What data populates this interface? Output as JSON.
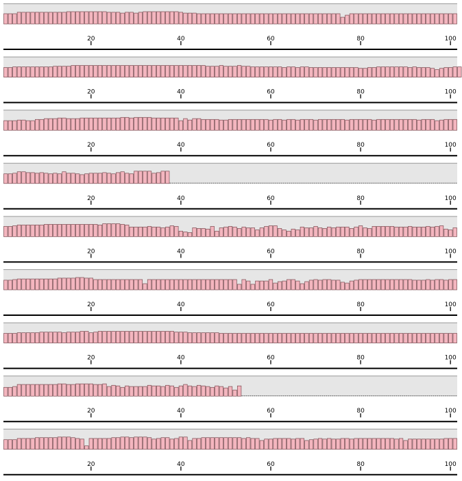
{
  "chart_data": {
    "type": "bar",
    "grid": false,
    "xlim": [
      1,
      101
    ],
    "ylim": [
      0,
      1
    ],
    "x_ticks": [
      "20",
      "40",
      "60",
      "80",
      "100"
    ],
    "colors": {
      "bar_fill": "#f4b6bf",
      "bar_stroke": "#7a4a50",
      "panel_bg": "#e6e6e6",
      "axis": "#000000"
    },
    "tracks": [
      {
        "length": 101,
        "values": [
          0.5,
          0.5,
          0.5,
          0.57,
          0.57,
          0.57,
          0.57,
          0.57,
          0.57,
          0.57,
          0.57,
          0.57,
          0.57,
          0.57,
          0.6,
          0.6,
          0.6,
          0.6,
          0.6,
          0.6,
          0.6,
          0.6,
          0.6,
          0.57,
          0.57,
          0.57,
          0.53,
          0.57,
          0.57,
          0.53,
          0.57,
          0.6,
          0.6,
          0.6,
          0.6,
          0.6,
          0.6,
          0.6,
          0.6,
          0.57,
          0.53,
          0.53,
          0.53,
          0.5,
          0.5,
          0.5,
          0.5,
          0.5,
          0.5,
          0.5,
          0.5,
          0.5,
          0.5,
          0.5,
          0.5,
          0.5,
          0.5,
          0.5,
          0.5,
          0.5,
          0.5,
          0.5,
          0.5,
          0.5,
          0.5,
          0.5,
          0.5,
          0.5,
          0.5,
          0.5,
          0.5,
          0.5,
          0.5,
          0.5,
          0.5,
          0.33,
          0.43,
          0.5,
          0.5,
          0.5,
          0.5,
          0.5,
          0.5,
          0.5,
          0.5,
          0.5,
          0.5,
          0.5,
          0.5,
          0.5,
          0.5,
          0.5,
          0.5,
          0.5,
          0.5,
          0.5,
          0.5,
          0.5,
          0.5,
          0.5,
          0.5
        ]
      },
      {
        "length": 101,
        "values": [
          0.47,
          0.47,
          0.5,
          0.5,
          0.5,
          0.5,
          0.5,
          0.5,
          0.5,
          0.5,
          0.5,
          0.53,
          0.53,
          0.53,
          0.53,
          0.57,
          0.57,
          0.57,
          0.57,
          0.57,
          0.57,
          0.57,
          0.57,
          0.57,
          0.57,
          0.57,
          0.57,
          0.57,
          0.57,
          0.57,
          0.57,
          0.57,
          0.57,
          0.57,
          0.57,
          0.57,
          0.57,
          0.57,
          0.57,
          0.57,
          0.57,
          0.57,
          0.57,
          0.57,
          0.57,
          0.53,
          0.53,
          0.53,
          0.57,
          0.53,
          0.53,
          0.53,
          0.57,
          0.53,
          0.53,
          0.5,
          0.5,
          0.5,
          0.5,
          0.5,
          0.5,
          0.5,
          0.47,
          0.5,
          0.5,
          0.47,
          0.5,
          0.5,
          0.47,
          0.47,
          0.47,
          0.47,
          0.47,
          0.47,
          0.47,
          0.47,
          0.47,
          0.47,
          0.47,
          0.43,
          0.43,
          0.47,
          0.47,
          0.5,
          0.5,
          0.5,
          0.5,
          0.5,
          0.5,
          0.5,
          0.47,
          0.5,
          0.47,
          0.47,
          0.47,
          0.43,
          0.37,
          0.43,
          0.47,
          0.47,
          0.5,
          0.5
        ]
      },
      {
        "length": 101,
        "values": [
          0.47,
          0.47,
          0.47,
          0.5,
          0.5,
          0.47,
          0.47,
          0.53,
          0.53,
          0.57,
          0.57,
          0.57,
          0.6,
          0.6,
          0.57,
          0.57,
          0.57,
          0.6,
          0.6,
          0.6,
          0.6,
          0.6,
          0.6,
          0.6,
          0.6,
          0.6,
          0.63,
          0.63,
          0.6,
          0.63,
          0.63,
          0.63,
          0.63,
          0.6,
          0.6,
          0.6,
          0.6,
          0.6,
          0.6,
          0.47,
          0.57,
          0.5,
          0.57,
          0.57,
          0.53,
          0.53,
          0.53,
          0.53,
          0.5,
          0.5,
          0.53,
          0.53,
          0.53,
          0.53,
          0.53,
          0.53,
          0.53,
          0.53,
          0.53,
          0.5,
          0.53,
          0.53,
          0.5,
          0.53,
          0.53,
          0.5,
          0.53,
          0.53,
          0.53,
          0.5,
          0.53,
          0.53,
          0.53,
          0.53,
          0.53,
          0.53,
          0.5,
          0.53,
          0.53,
          0.53,
          0.53,
          0.53,
          0.5,
          0.53,
          0.53,
          0.53,
          0.53,
          0.53,
          0.53,
          0.53,
          0.53,
          0.53,
          0.5,
          0.53,
          0.53,
          0.53,
          0.47,
          0.5,
          0.53,
          0.53,
          0.53
        ]
      },
      {
        "length": 37,
        "values": [
          0.47,
          0.47,
          0.5,
          0.57,
          0.57,
          0.53,
          0.53,
          0.5,
          0.53,
          0.5,
          0.47,
          0.5,
          0.47,
          0.57,
          0.5,
          0.5,
          0.47,
          0.43,
          0.47,
          0.5,
          0.5,
          0.5,
          0.53,
          0.5,
          0.47,
          0.53,
          0.57,
          0.5,
          0.47,
          0.6,
          0.6,
          0.6,
          0.6,
          0.5,
          0.53,
          0.6,
          0.6
        ]
      },
      {
        "length": 101,
        "values": [
          0.5,
          0.5,
          0.53,
          0.57,
          0.57,
          0.57,
          0.57,
          0.57,
          0.57,
          0.6,
          0.6,
          0.6,
          0.6,
          0.6,
          0.6,
          0.6,
          0.6,
          0.6,
          0.6,
          0.6,
          0.6,
          0.57,
          0.63,
          0.63,
          0.63,
          0.63,
          0.6,
          0.57,
          0.47,
          0.47,
          0.47,
          0.47,
          0.5,
          0.47,
          0.47,
          0.43,
          0.47,
          0.53,
          0.5,
          0.27,
          0.23,
          0.2,
          0.43,
          0.4,
          0.4,
          0.37,
          0.5,
          0.27,
          0.43,
          0.47,
          0.5,
          0.47,
          0.4,
          0.47,
          0.43,
          0.43,
          0.33,
          0.43,
          0.5,
          0.53,
          0.53,
          0.4,
          0.33,
          0.27,
          0.37,
          0.33,
          0.47,
          0.43,
          0.43,
          0.5,
          0.43,
          0.4,
          0.47,
          0.43,
          0.47,
          0.47,
          0.47,
          0.4,
          0.47,
          0.53,
          0.43,
          0.4,
          0.5,
          0.5,
          0.5,
          0.5,
          0.5,
          0.47,
          0.47,
          0.47,
          0.5,
          0.47,
          0.47,
          0.47,
          0.5,
          0.47,
          0.5,
          0.53,
          0.37,
          0.33,
          0.43
        ]
      },
      {
        "length": 101,
        "values": [
          0.47,
          0.47,
          0.5,
          0.53,
          0.53,
          0.53,
          0.53,
          0.53,
          0.53,
          0.53,
          0.53,
          0.53,
          0.57,
          0.57,
          0.57,
          0.57,
          0.6,
          0.6,
          0.57,
          0.57,
          0.5,
          0.5,
          0.5,
          0.5,
          0.5,
          0.5,
          0.5,
          0.5,
          0.5,
          0.5,
          0.5,
          0.3,
          0.5,
          0.5,
          0.5,
          0.5,
          0.5,
          0.5,
          0.5,
          0.5,
          0.5,
          0.5,
          0.5,
          0.5,
          0.5,
          0.5,
          0.5,
          0.5,
          0.5,
          0.5,
          0.5,
          0.5,
          0.27,
          0.5,
          0.43,
          0.27,
          0.43,
          0.43,
          0.43,
          0.5,
          0.33,
          0.4,
          0.43,
          0.5,
          0.5,
          0.43,
          0.3,
          0.4,
          0.47,
          0.5,
          0.47,
          0.5,
          0.5,
          0.47,
          0.47,
          0.37,
          0.33,
          0.43,
          0.47,
          0.5,
          0.5,
          0.5,
          0.5,
          0.5,
          0.5,
          0.5,
          0.5,
          0.5,
          0.5,
          0.5,
          0.5,
          0.47,
          0.47,
          0.47,
          0.5,
          0.47,
          0.5,
          0.5,
          0.47,
          0.5,
          0.5
        ]
      },
      {
        "length": 101,
        "values": [
          0.47,
          0.47,
          0.47,
          0.5,
          0.5,
          0.5,
          0.5,
          0.5,
          0.53,
          0.53,
          0.53,
          0.53,
          0.53,
          0.5,
          0.53,
          0.53,
          0.53,
          0.57,
          0.57,
          0.5,
          0.53,
          0.57,
          0.57,
          0.57,
          0.57,
          0.57,
          0.57,
          0.57,
          0.57,
          0.57,
          0.57,
          0.57,
          0.57,
          0.57,
          0.57,
          0.57,
          0.57,
          0.57,
          0.53,
          0.53,
          0.53,
          0.5,
          0.5,
          0.5,
          0.5,
          0.5,
          0.5,
          0.5,
          0.47,
          0.47,
          0.47,
          0.47,
          0.47,
          0.47,
          0.47,
          0.47,
          0.47,
          0.47,
          0.47,
          0.47,
          0.47,
          0.47,
          0.47,
          0.47,
          0.47,
          0.47,
          0.47,
          0.47,
          0.47,
          0.47,
          0.47,
          0.47,
          0.47,
          0.47,
          0.47,
          0.47,
          0.47,
          0.47,
          0.47,
          0.47,
          0.47,
          0.47,
          0.47,
          0.47,
          0.47,
          0.47,
          0.47,
          0.47,
          0.47,
          0.47,
          0.47,
          0.47,
          0.47,
          0.47,
          0.47,
          0.47,
          0.47,
          0.47,
          0.47,
          0.47,
          0.47
        ]
      },
      {
        "length": 53,
        "values": [
          0.43,
          0.43,
          0.47,
          0.57,
          0.57,
          0.57,
          0.57,
          0.57,
          0.57,
          0.57,
          0.57,
          0.57,
          0.6,
          0.6,
          0.57,
          0.57,
          0.6,
          0.6,
          0.6,
          0.6,
          0.57,
          0.57,
          0.6,
          0.47,
          0.53,
          0.5,
          0.43,
          0.5,
          0.47,
          0.47,
          0.47,
          0.47,
          0.53,
          0.5,
          0.5,
          0.47,
          0.53,
          0.5,
          0.43,
          0.5,
          0.57,
          0.5,
          0.47,
          0.53,
          0.5,
          0.47,
          0.43,
          0.5,
          0.47,
          0.4,
          0.47,
          0.3,
          0.5
        ]
      },
      {
        "length": 101,
        "values": [
          0.47,
          0.47,
          0.47,
          0.53,
          0.53,
          0.53,
          0.53,
          0.57,
          0.57,
          0.57,
          0.57,
          0.57,
          0.6,
          0.6,
          0.6,
          0.57,
          0.53,
          0.5,
          0.17,
          0.53,
          0.53,
          0.53,
          0.53,
          0.53,
          0.57,
          0.57,
          0.6,
          0.6,
          0.57,
          0.6,
          0.6,
          0.6,
          0.57,
          0.5,
          0.53,
          0.57,
          0.57,
          0.5,
          0.53,
          0.6,
          0.6,
          0.43,
          0.53,
          0.53,
          0.57,
          0.57,
          0.57,
          0.57,
          0.57,
          0.57,
          0.57,
          0.57,
          0.57,
          0.53,
          0.57,
          0.53,
          0.53,
          0.43,
          0.5,
          0.5,
          0.53,
          0.53,
          0.53,
          0.53,
          0.5,
          0.53,
          0.53,
          0.43,
          0.47,
          0.5,
          0.53,
          0.5,
          0.53,
          0.5,
          0.5,
          0.53,
          0.53,
          0.5,
          0.53,
          0.53,
          0.53,
          0.53,
          0.53,
          0.53,
          0.53,
          0.53,
          0.53,
          0.5,
          0.53,
          0.43,
          0.5,
          0.5,
          0.5,
          0.5,
          0.5,
          0.5,
          0.5,
          0.5,
          0.53,
          0.53,
          0.53
        ]
      }
    ]
  }
}
